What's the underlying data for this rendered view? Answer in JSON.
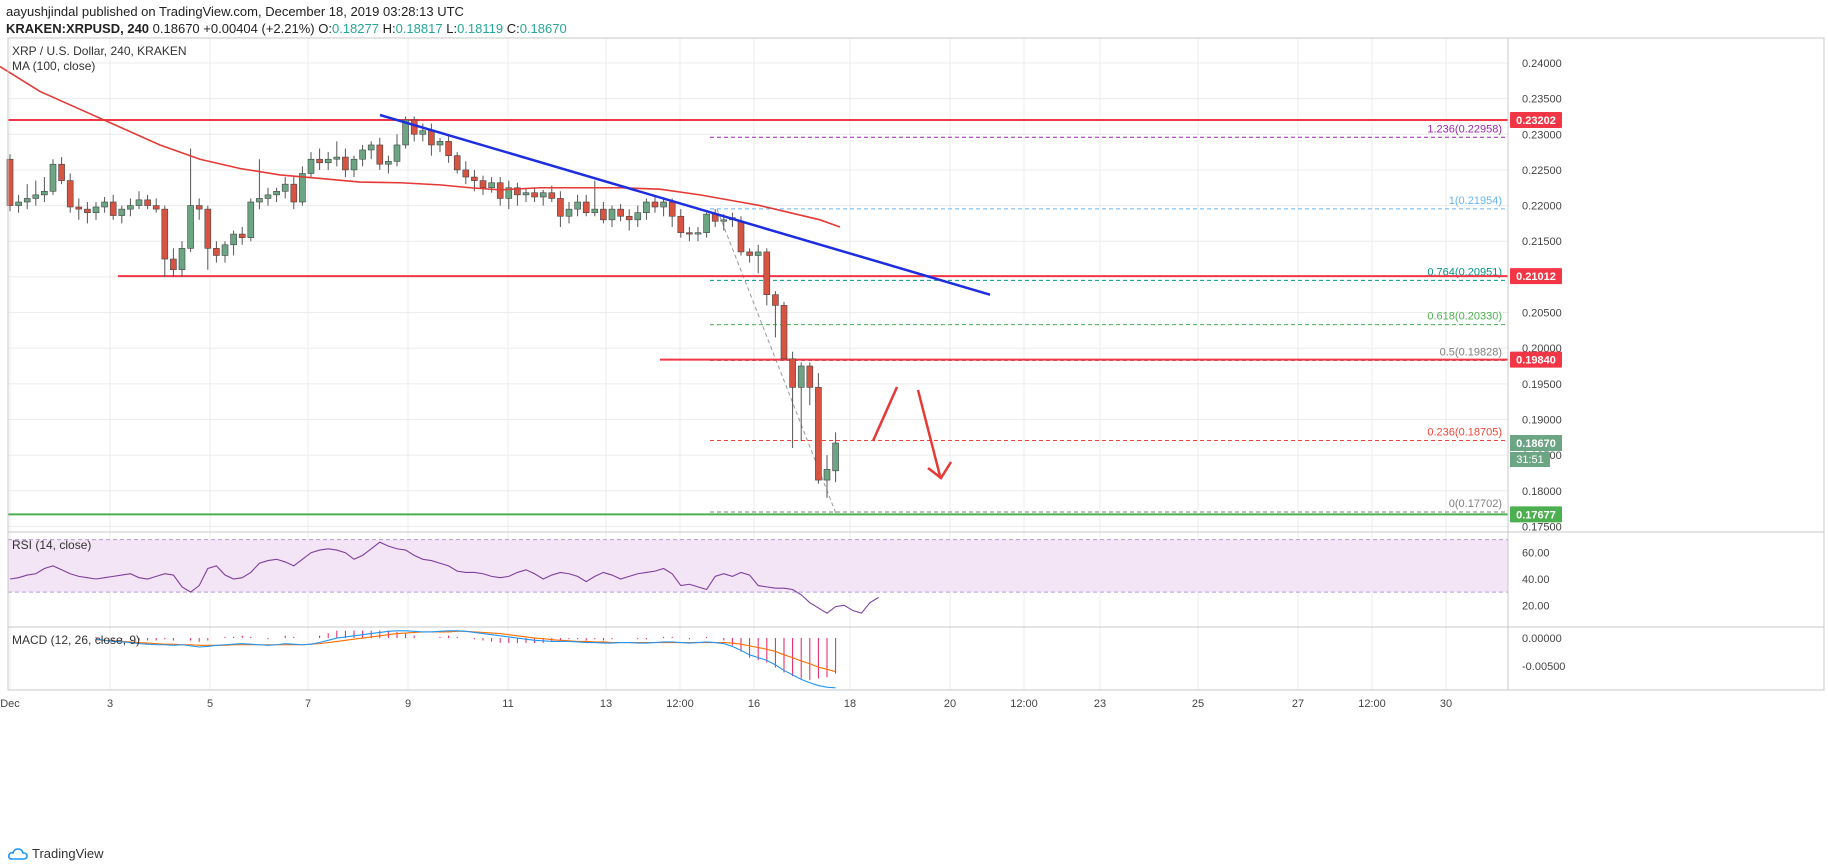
{
  "header": {
    "publisher_line": "aayushjindal published on TradingView.com, December 18, 2019 03:28:13 UTC",
    "symbol": "KRAKEN:XRPUSD, 240",
    "last": "0.18670",
    "change": "+0.00404 (+2.21%)",
    "o_label": "O:",
    "o": "0.18277",
    "h_label": "H:",
    "h": "0.18817",
    "l_label": "L:",
    "l": "0.18119",
    "c_label": "C:",
    "c": "0.18670"
  },
  "brand": "TradingView",
  "colors": {
    "up": "#6ba583",
    "down": "#d75442",
    "ma": "#e53935",
    "trend": "#1d2de0",
    "level_red": "#f23645",
    "level_green": "#4caf50",
    "rsi": "#7e3f9d",
    "rsi_bg": "#f3e5f5",
    "macd_line": "#2196f3",
    "signal_line": "#ff6d00",
    "hist": "#e91e63"
  },
  "chart_data": {
    "type": "candlestick",
    "title": "XRP / U.S. Dollar, 240, KRAKEN",
    "indicator": "MA (100, close)",
    "x_ticks": [
      "Dec",
      "3",
      "5",
      "7",
      "9",
      "11",
      "13",
      "12:00",
      "16",
      "18",
      "20",
      "12:00",
      "23",
      "25",
      "27",
      "12:00",
      "30"
    ],
    "y_ticks": [
      "0.24000",
      "0.23500",
      "0.23000",
      "0.22500",
      "0.22000",
      "0.21500",
      "0.21000",
      "0.20500",
      "0.20000",
      "0.19500",
      "0.19000",
      "0.18500",
      "0.18000",
      "0.17500"
    ],
    "y_range": [
      0.1745,
      0.2435
    ],
    "candles": [
      [
        0.2265,
        0.2272,
        0.2192,
        0.22
      ],
      [
        0.22,
        0.2215,
        0.219,
        0.2205
      ],
      [
        0.2205,
        0.223,
        0.2195,
        0.221
      ],
      [
        0.221,
        0.2235,
        0.22,
        0.2215
      ],
      [
        0.2215,
        0.224,
        0.2205,
        0.222
      ],
      [
        0.222,
        0.2265,
        0.2215,
        0.2258
      ],
      [
        0.2258,
        0.2268,
        0.223,
        0.2235
      ],
      [
        0.2235,
        0.2245,
        0.219,
        0.2198
      ],
      [
        0.2198,
        0.221,
        0.218,
        0.2195
      ],
      [
        0.2195,
        0.2205,
        0.2175,
        0.219
      ],
      [
        0.219,
        0.2205,
        0.218,
        0.2198
      ],
      [
        0.2198,
        0.2212,
        0.219,
        0.2205
      ],
      [
        0.2205,
        0.2215,
        0.218,
        0.2186
      ],
      [
        0.2186,
        0.22,
        0.2175,
        0.2195
      ],
      [
        0.2195,
        0.221,
        0.2185,
        0.22
      ],
      [
        0.22,
        0.222,
        0.2195,
        0.2208
      ],
      [
        0.2208,
        0.2215,
        0.2195,
        0.22
      ],
      [
        0.22,
        0.221,
        0.219,
        0.2195
      ],
      [
        0.2195,
        0.22,
        0.21,
        0.2125
      ],
      [
        0.2125,
        0.214,
        0.21,
        0.211
      ],
      [
        0.211,
        0.215,
        0.21,
        0.214
      ],
      [
        0.214,
        0.228,
        0.2135,
        0.22
      ],
      [
        0.22,
        0.221,
        0.218,
        0.2195
      ],
      [
        0.2195,
        0.22,
        0.211,
        0.214
      ],
      [
        0.214,
        0.215,
        0.212,
        0.213
      ],
      [
        0.213,
        0.215,
        0.212,
        0.2145
      ],
      [
        0.2145,
        0.2165,
        0.213,
        0.216
      ],
      [
        0.216,
        0.217,
        0.2145,
        0.2155
      ],
      [
        0.2155,
        0.221,
        0.215,
        0.2205
      ],
      [
        0.2205,
        0.2265,
        0.2195,
        0.221
      ],
      [
        0.221,
        0.2225,
        0.22,
        0.2215
      ],
      [
        0.2215,
        0.2225,
        0.2205,
        0.222
      ],
      [
        0.222,
        0.224,
        0.221,
        0.223
      ],
      [
        0.223,
        0.224,
        0.2195,
        0.2205
      ],
      [
        0.2205,
        0.2255,
        0.22,
        0.2245
      ],
      [
        0.2245,
        0.2275,
        0.224,
        0.2265
      ],
      [
        0.2265,
        0.228,
        0.225,
        0.226
      ],
      [
        0.226,
        0.2275,
        0.225,
        0.2265
      ],
      [
        0.2265,
        0.229,
        0.2255,
        0.2268
      ],
      [
        0.2268,
        0.228,
        0.224,
        0.225
      ],
      [
        0.225,
        0.227,
        0.224,
        0.2265
      ],
      [
        0.2265,
        0.2285,
        0.2255,
        0.2278
      ],
      [
        0.2278,
        0.229,
        0.2265,
        0.2285
      ],
      [
        0.2285,
        0.2295,
        0.225,
        0.2258
      ],
      [
        0.2258,
        0.227,
        0.2245,
        0.2262
      ],
      [
        0.2262,
        0.23,
        0.2255,
        0.2285
      ],
      [
        0.2285,
        0.2325,
        0.228,
        0.232
      ],
      [
        0.232,
        0.2325,
        0.229,
        0.23
      ],
      [
        0.23,
        0.2315,
        0.229,
        0.2305
      ],
      [
        0.2305,
        0.2315,
        0.227,
        0.2285
      ],
      [
        0.2285,
        0.2295,
        0.2275,
        0.229
      ],
      [
        0.229,
        0.2298,
        0.226,
        0.227
      ],
      [
        0.227,
        0.2275,
        0.2245,
        0.225
      ],
      [
        0.225,
        0.2262,
        0.223,
        0.224
      ],
      [
        0.224,
        0.225,
        0.222,
        0.2235
      ],
      [
        0.2235,
        0.2242,
        0.2215,
        0.2225
      ],
      [
        0.2225,
        0.224,
        0.2218,
        0.2232
      ],
      [
        0.2232,
        0.224,
        0.22,
        0.221
      ],
      [
        0.221,
        0.2235,
        0.2195,
        0.2225
      ],
      [
        0.2225,
        0.2232,
        0.22,
        0.2215
      ],
      [
        0.2215,
        0.2225,
        0.2205,
        0.2218
      ],
      [
        0.2218,
        0.2225,
        0.2205,
        0.2212
      ],
      [
        0.2212,
        0.2222,
        0.22,
        0.2218
      ],
      [
        0.2218,
        0.2228,
        0.2205,
        0.221
      ],
      [
        0.221,
        0.222,
        0.217,
        0.2185
      ],
      [
        0.2185,
        0.2205,
        0.2175,
        0.2195
      ],
      [
        0.2195,
        0.2215,
        0.2185,
        0.2205
      ],
      [
        0.2205,
        0.2215,
        0.2185,
        0.219
      ],
      [
        0.219,
        0.2235,
        0.2185,
        0.2195
      ],
      [
        0.2195,
        0.2205,
        0.2175,
        0.218
      ],
      [
        0.218,
        0.22,
        0.217,
        0.2195
      ],
      [
        0.2195,
        0.2202,
        0.2178,
        0.2185
      ],
      [
        0.2185,
        0.2195,
        0.2165,
        0.218
      ],
      [
        0.218,
        0.22,
        0.217,
        0.219
      ],
      [
        0.219,
        0.221,
        0.218,
        0.2205
      ],
      [
        0.2205,
        0.2212,
        0.219,
        0.2198
      ],
      [
        0.2198,
        0.221,
        0.2185,
        0.2205
      ],
      [
        0.2205,
        0.221,
        0.217,
        0.2185
      ],
      [
        0.2185,
        0.2195,
        0.2155,
        0.2162
      ],
      [
        0.2162,
        0.217,
        0.215,
        0.216
      ],
      [
        0.216,
        0.217,
        0.215,
        0.2162
      ],
      [
        0.2162,
        0.219,
        0.2155,
        0.2188
      ],
      [
        0.2188,
        0.2195,
        0.217,
        0.2178
      ],
      [
        0.2178,
        0.2188,
        0.2165,
        0.218
      ],
      [
        0.218,
        0.219,
        0.217,
        0.2183
      ],
      [
        0.2178,
        0.2185,
        0.213,
        0.2135
      ],
      [
        0.2135,
        0.214,
        0.212,
        0.213
      ],
      [
        0.213,
        0.2145,
        0.2105,
        0.2135
      ],
      [
        0.2135,
        0.214,
        0.206,
        0.2075
      ],
      [
        0.2075,
        0.208,
        0.2015,
        0.206
      ],
      [
        0.206,
        0.2065,
        0.199,
        0.1985
      ],
      [
        0.1985,
        0.1995,
        0.186,
        0.1945
      ],
      [
        0.1945,
        0.198,
        0.187,
        0.1975
      ],
      [
        0.1975,
        0.198,
        0.192,
        0.1945
      ],
      [
        0.1945,
        0.1965,
        0.181,
        0.1815
      ],
      [
        0.1815,
        0.185,
        0.179,
        0.183
      ],
      [
        0.1828,
        0.1882,
        0.1812,
        0.1867
      ]
    ],
    "ma100": [
      [
        0,
        0.2395
      ],
      [
        40,
        0.236
      ],
      [
        80,
        0.2335
      ],
      [
        120,
        0.231
      ],
      [
        160,
        0.2285
      ],
      [
        200,
        0.2265
      ],
      [
        240,
        0.2252
      ],
      [
        280,
        0.2243
      ],
      [
        320,
        0.2238
      ],
      [
        360,
        0.2233
      ],
      [
        400,
        0.2232
      ],
      [
        440,
        0.2229
      ],
      [
        470,
        0.2225
      ],
      [
        500,
        0.2222
      ],
      [
        540,
        0.2225
      ],
      [
        580,
        0.2225
      ],
      [
        620,
        0.2225
      ],
      [
        660,
        0.2223
      ],
      [
        700,
        0.2215
      ],
      [
        740,
        0.2205
      ],
      [
        760,
        0.22
      ],
      [
        790,
        0.219
      ],
      [
        820,
        0.218
      ],
      [
        840,
        0.217
      ]
    ],
    "trend_line": [
      [
        380,
        0.2327
      ],
      [
        990,
        0.2075
      ]
    ],
    "horizontal_levels": [
      {
        "price": 0.232,
        "label": "0.23202",
        "x_start": 0,
        "color": "red"
      },
      {
        "price": 0.2101,
        "label": "0.21012",
        "x_start": 118,
        "color": "red"
      },
      {
        "price": 0.1984,
        "label": "0.19840",
        "x_start": 660,
        "color": "red"
      },
      {
        "price": 0.1767,
        "label": "0.17677",
        "x_start": 0,
        "color": "green"
      }
    ],
    "fib_levels": [
      {
        "ratio": "1.236",
        "value": "0.22958",
        "price": 0.22958,
        "color": "#9c27b0"
      },
      {
        "ratio": "1",
        "value": "0.21954",
        "price": 0.21954,
        "color": "#64b5f6"
      },
      {
        "ratio": "0.764",
        "value": "0.20951",
        "price": 0.20951,
        "color": "#009688"
      },
      {
        "ratio": "0.618",
        "value": "0.20330",
        "price": 0.2033,
        "color": "#4caf50"
      },
      {
        "ratio": "0.5",
        "value": "0.19828",
        "price": 0.19828,
        "color": "#808080"
      },
      {
        "ratio": "0.236",
        "value": "0.18705",
        "price": 0.18705,
        "color": "#f44336"
      },
      {
        "ratio": "0",
        "value": "0.17702",
        "price": 0.17702,
        "color": "#808080"
      }
    ],
    "current_price": {
      "label": "0.18670",
      "countdown": "31:51",
      "price": 0.1867
    },
    "rsi": {
      "label": "RSI (14, close)",
      "ticks": [
        "60.00",
        "40.00",
        "20.00"
      ],
      "range": [
        5,
        75
      ],
      "band": [
        30,
        70
      ],
      "values": [
        40,
        41,
        43,
        44,
        48,
        50,
        47,
        44,
        42,
        41,
        40,
        41,
        42,
        43,
        44,
        41,
        40,
        42,
        44,
        43,
        34,
        30,
        35,
        48,
        50,
        43,
        40,
        41,
        45,
        52,
        54,
        55,
        53,
        50,
        55,
        60,
        62,
        63,
        62,
        60,
        55,
        58,
        63,
        68,
        65,
        63,
        62,
        58,
        55,
        54,
        52,
        50,
        46,
        45,
        45,
        44,
        42,
        41,
        42,
        45,
        47,
        44,
        40,
        43,
        45,
        44,
        42,
        38,
        42,
        45,
        43,
        40,
        42,
        44,
        45,
        46,
        48,
        44,
        35,
        36,
        34,
        32,
        42,
        44,
        42,
        45,
        43,
        35,
        34,
        33,
        33,
        32,
        28,
        22,
        18,
        14,
        19,
        20,
        16,
        14,
        22,
        26
      ]
    },
    "macd": {
      "label": "MACD (12, 26, close, 9)",
      "ticks": [
        "0.00000",
        "-0.00500"
      ],
      "range": [
        -0.0093,
        0.0018
      ],
      "macd_line": [
        -0.0002,
        -0.0004,
        -0.0006,
        -0.0007,
        -0.0008,
        -0.001,
        -0.0011,
        -0.0012,
        -0.0012,
        -0.0013,
        -0.0012,
        -0.0014,
        -0.0016,
        -0.0015,
        -0.0013,
        -0.0012,
        -0.0011,
        -0.001,
        -0.0011,
        -0.0012,
        -0.0013,
        -0.0012,
        -0.001,
        -0.0011,
        -0.0012,
        -0.0011,
        -0.0008,
        -0.0004,
        0.0,
        0.0002,
        0.0004,
        0.0006,
        0.0008,
        0.001,
        0.0012,
        0.0013,
        0.0013,
        0.0012,
        0.0011,
        0.0011,
        0.0012,
        0.0013,
        0.0013,
        0.0012,
        0.001,
        0.0008,
        0.0006,
        0.0004,
        0.0002,
        0.0,
        -0.0002,
        -0.0004,
        -0.0005,
        -0.0006,
        -0.0006,
        -0.0006,
        -0.0007,
        -0.0008,
        -0.0008,
        -0.0009,
        -0.0009,
        -0.0008,
        -0.0008,
        -0.0009,
        -0.0009,
        -0.0008,
        -0.0007,
        -0.0007,
        -0.0008,
        -0.0009,
        -0.0008,
        -0.0007,
        -0.0008,
        -0.001,
        -0.0015,
        -0.0022,
        -0.003,
        -0.0035,
        -0.004,
        -0.0048,
        -0.0058,
        -0.0066,
        -0.0074,
        -0.008,
        -0.0085,
        -0.0088,
        -0.0089
      ],
      "signal_line": [
        -0.0003,
        -0.0004,
        -0.0005,
        -0.0006,
        -0.0007,
        -0.0008,
        -0.0009,
        -0.001,
        -0.0011,
        -0.0011,
        -0.0012,
        -0.0012,
        -0.0013,
        -0.0013,
        -0.0013,
        -0.0013,
        -0.0012,
        -0.0012,
        -0.0012,
        -0.0012,
        -0.0012,
        -0.0012,
        -0.0012,
        -0.0012,
        -0.0012,
        -0.0011,
        -0.001,
        -0.0008,
        -0.0006,
        -0.0004,
        -0.0002,
        0.0,
        0.0002,
        0.0004,
        0.0006,
        0.0008,
        0.0009,
        0.001,
        0.0011,
        0.0011,
        0.0011,
        0.0011,
        0.0012,
        0.0012,
        0.0011,
        0.001,
        0.0009,
        0.0008,
        0.0006,
        0.0004,
        0.0002,
        0.0,
        -0.0001,
        -0.0003,
        -0.0004,
        -0.0005,
        -0.0006,
        -0.0006,
        -0.0007,
        -0.0007,
        -0.0008,
        -0.0008,
        -0.0008,
        -0.0008,
        -0.0008,
        -0.0008,
        -0.0008,
        -0.0008,
        -0.0008,
        -0.0008,
        -0.0008,
        -0.0008,
        -0.0008,
        -0.0008,
        -0.0009,
        -0.0011,
        -0.0014,
        -0.0017,
        -0.002,
        -0.0024,
        -0.003,
        -0.0035,
        -0.0041,
        -0.0046,
        -0.0052,
        -0.0056,
        -0.006
      ]
    }
  }
}
